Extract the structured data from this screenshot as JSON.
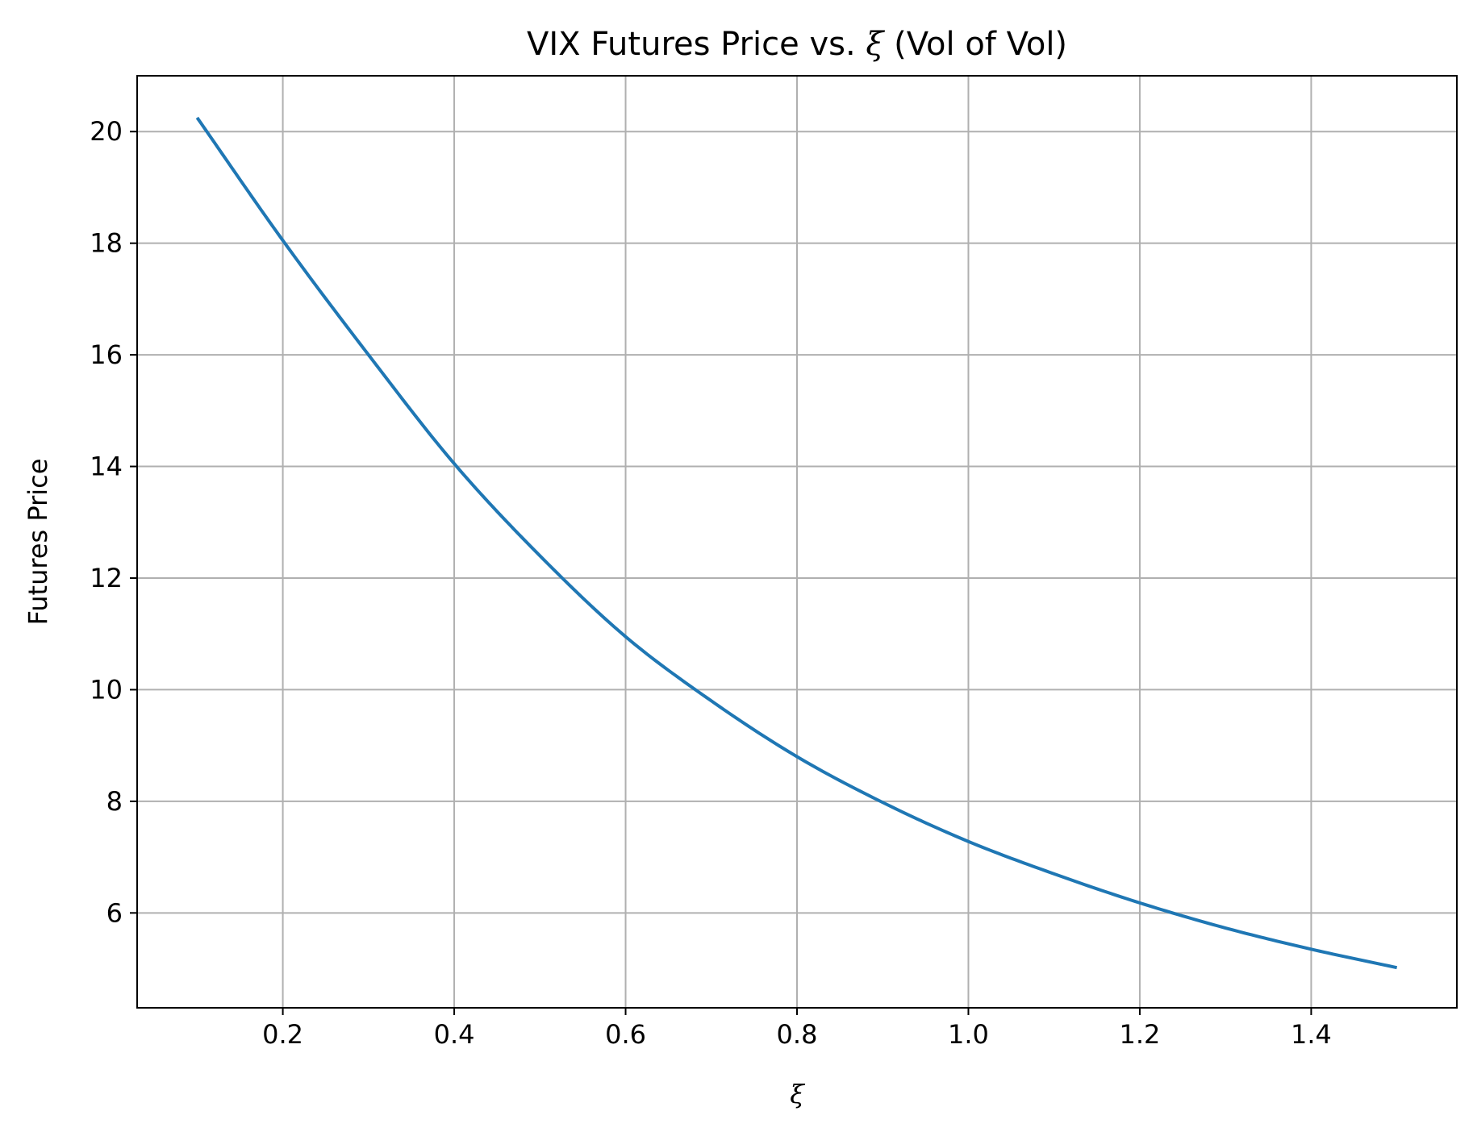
{
  "chart_data": {
    "type": "line",
    "title": "VIX Futures Price vs. ξ (Vol of Vol)",
    "title_parts": {
      "pre": "VIX Futures Price vs. ",
      "sym": "ξ",
      "post": " (Vol of Vol)"
    },
    "xlabel": "ξ",
    "ylabel": "Futures Price",
    "xlim": [
      0.03,
      1.57
    ],
    "ylim": [
      4.3,
      21.0
    ],
    "xticks": [
      0.2,
      0.4,
      0.6,
      0.8,
      1.0,
      1.2,
      1.4
    ],
    "xtick_labels": [
      "0.2",
      "0.4",
      "0.6",
      "0.8",
      "1.0",
      "1.2",
      "1.4"
    ],
    "yticks": [
      6,
      8,
      10,
      12,
      14,
      16,
      18,
      20
    ],
    "ytick_labels": [
      "6",
      "8",
      "10",
      "12",
      "14",
      "16",
      "18",
      "20"
    ],
    "grid": true,
    "line_color": "#1f77b4",
    "series": [
      {
        "x": [
          0.1,
          0.2,
          0.3,
          0.4,
          0.5,
          0.6,
          0.7,
          0.8,
          0.9,
          1.0,
          1.1,
          1.2,
          1.3,
          1.4,
          1.5
        ],
        "values": [
          20.25,
          18.05,
          16.0,
          14.05,
          12.4,
          10.95,
          9.8,
          8.8,
          7.98,
          7.28,
          6.7,
          6.18,
          5.73,
          5.35,
          5.02
        ]
      }
    ]
  }
}
